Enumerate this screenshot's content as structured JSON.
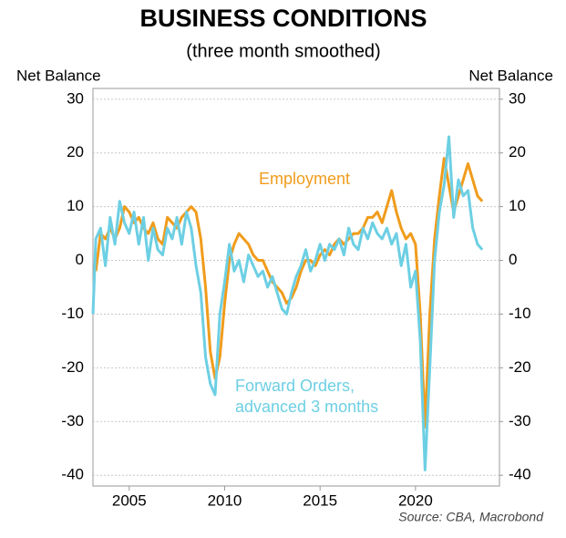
{
  "chart_data": {
    "type": "line",
    "title": "BUSINESS CONDITIONS",
    "subtitle": "(three month smoothed)",
    "y_label": "Net Balance",
    "y2_label": "Net Balance",
    "source": "Source: CBA, Macrobond",
    "annotations": [
      "Employment",
      "Forward Orders,",
      "advanced 3 months"
    ],
    "x": [
      2003.1,
      2003.25,
      2003.5,
      2003.75,
      2004,
      2004.25,
      2004.5,
      2004.75,
      2005,
      2005.25,
      2005.5,
      2005.75,
      2006,
      2006.25,
      2006.5,
      2006.75,
      2007,
      2007.25,
      2007.5,
      2007.75,
      2008,
      2008.25,
      2008.5,
      2008.75,
      2009,
      2009.25,
      2009.5,
      2009.75,
      2010,
      2010.25,
      2010.5,
      2010.75,
      2011,
      2011.25,
      2011.5,
      2011.75,
      2012,
      2012.25,
      2012.5,
      2012.75,
      2013,
      2013.25,
      2013.5,
      2013.75,
      2014,
      2014.25,
      2014.5,
      2014.75,
      2015,
      2015.25,
      2015.5,
      2015.75,
      2016,
      2016.25,
      2016.5,
      2016.75,
      2017,
      2017.25,
      2017.5,
      2017.75,
      2018,
      2018.25,
      2018.5,
      2018.75,
      2019,
      2019.25,
      2019.5,
      2019.75,
      2020,
      2020.25,
      2020.5,
      2020.75,
      2021,
      2021.25,
      2021.5,
      2021.75,
      2022,
      2022.25,
      2022.5,
      2022.75,
      2023,
      2023.25,
      2023.5
    ],
    "series": [
      {
        "name": "Employment",
        "color": "#f09c1c",
        "values": [
          null,
          -2,
          5,
          4,
          6,
          4,
          6,
          10,
          9,
          7,
          8,
          6,
          5,
          7,
          4,
          3,
          8,
          7,
          6,
          8,
          9,
          10,
          9,
          4,
          -5,
          -17,
          -22,
          -18,
          -8,
          0,
          3,
          5,
          4,
          3,
          1,
          0,
          0,
          -2,
          -4,
          -5,
          -6,
          -8,
          -7,
          -5,
          -2,
          0,
          0,
          -1,
          1,
          2,
          1,
          3,
          4,
          3,
          4,
          5,
          5,
          6,
          8,
          8,
          9,
          7,
          10,
          13,
          9,
          6,
          4,
          5,
          3,
          -10,
          -31,
          -10,
          4,
          12,
          19,
          14,
          9,
          12,
          15,
          18,
          15,
          12,
          11
        ]
      },
      {
        "name": "Forward Orders, advanced 3 months",
        "color": "#6dcfe3",
        "values": [
          -10,
          4,
          6,
          -1,
          8,
          3,
          11,
          7,
          5,
          9,
          3,
          8,
          0,
          6,
          2,
          1,
          6,
          4,
          8,
          3,
          9,
          6,
          -1,
          -6,
          -18,
          -23,
          -25,
          -10,
          -4,
          3,
          -2,
          0,
          -4,
          1,
          -1,
          -3,
          -2,
          -5,
          -3,
          -6,
          -9,
          -10,
          -6,
          -3,
          -1,
          2,
          -2,
          0,
          3,
          0,
          3,
          2,
          4,
          1,
          6,
          3,
          2,
          6,
          4,
          7,
          5,
          4,
          6,
          3,
          5,
          -1,
          3,
          -5,
          -2,
          -15,
          -39,
          -20,
          0,
          9,
          14,
          23,
          8,
          15,
          12,
          13,
          6,
          3,
          2
        ]
      }
    ],
    "xlim": [
      2003.1,
      2024.4
    ],
    "xticks": [
      2005,
      2010,
      2015,
      2020
    ],
    "ylim": [
      -42,
      32
    ],
    "yticks": [
      -40,
      -30,
      -20,
      -10,
      0,
      10,
      20,
      30
    ],
    "y2lim": [
      -42,
      32
    ],
    "y2ticks": [
      -40,
      -30,
      -20,
      -10,
      0,
      10,
      20,
      30
    ],
    "grid": true
  }
}
